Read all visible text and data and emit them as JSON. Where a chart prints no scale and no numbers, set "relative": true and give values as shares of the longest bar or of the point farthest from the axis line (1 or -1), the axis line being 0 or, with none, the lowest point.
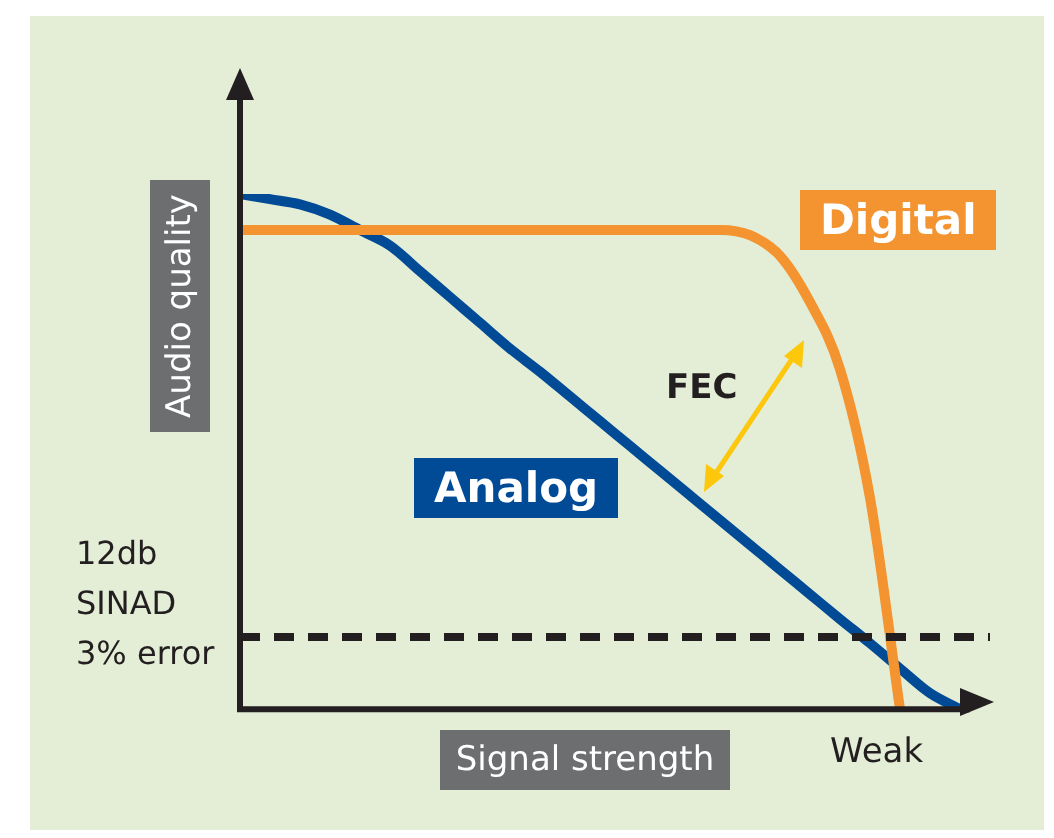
{
  "chart_data": {
    "type": "line",
    "relative": true,
    "xlabel": "Signal strength",
    "ylabel": "Audio quality",
    "categories": [
      null,
      null,
      null,
      null,
      null,
      null,
      null,
      null,
      null,
      null,
      null,
      null,
      null,
      null,
      null,
      null,
      null,
      null,
      null,
      null,
      null,
      null,
      null,
      null,
      null,
      null
    ],
    "series": [
      {
        "name": "Digital",
        "color": "#f39430",
        "values": [
          0.93,
          0.93,
          0.93,
          0.93,
          0.93,
          0.93,
          0.93,
          0.93,
          0.93,
          0.93,
          0.93,
          0.93,
          0.93,
          0.93,
          0.93,
          0.93,
          0.93,
          0.92,
          0.88,
          0.79,
          0.66,
          0.41,
          0,
          null,
          null,
          null
        ]
      },
      {
        "name": "Analog",
        "color": "#004a96",
        "values": [
          1,
          0.99,
          0.98,
          0.96,
          0.93,
          0.9,
          0.85,
          0.8,
          0.75,
          0.7,
          0.655,
          0.607,
          0.559,
          0.511,
          0.463,
          0.415,
          0.367,
          0.319,
          0.271,
          0.223,
          0.175,
          0.128,
          0.079,
          0.031,
          0,
          null
        ]
      }
    ],
    "ref_lines": [
      {
        "axis": "y",
        "value": 0.14,
        "label": "12db SINAD 3% error",
        "color": "#231f20",
        "line_style": "dashed"
      }
    ],
    "annotations": [
      "FEC",
      "Weak"
    ],
    "legend": false,
    "grid": false,
    "marker": "none",
    "line_style": "solid"
  }
}
